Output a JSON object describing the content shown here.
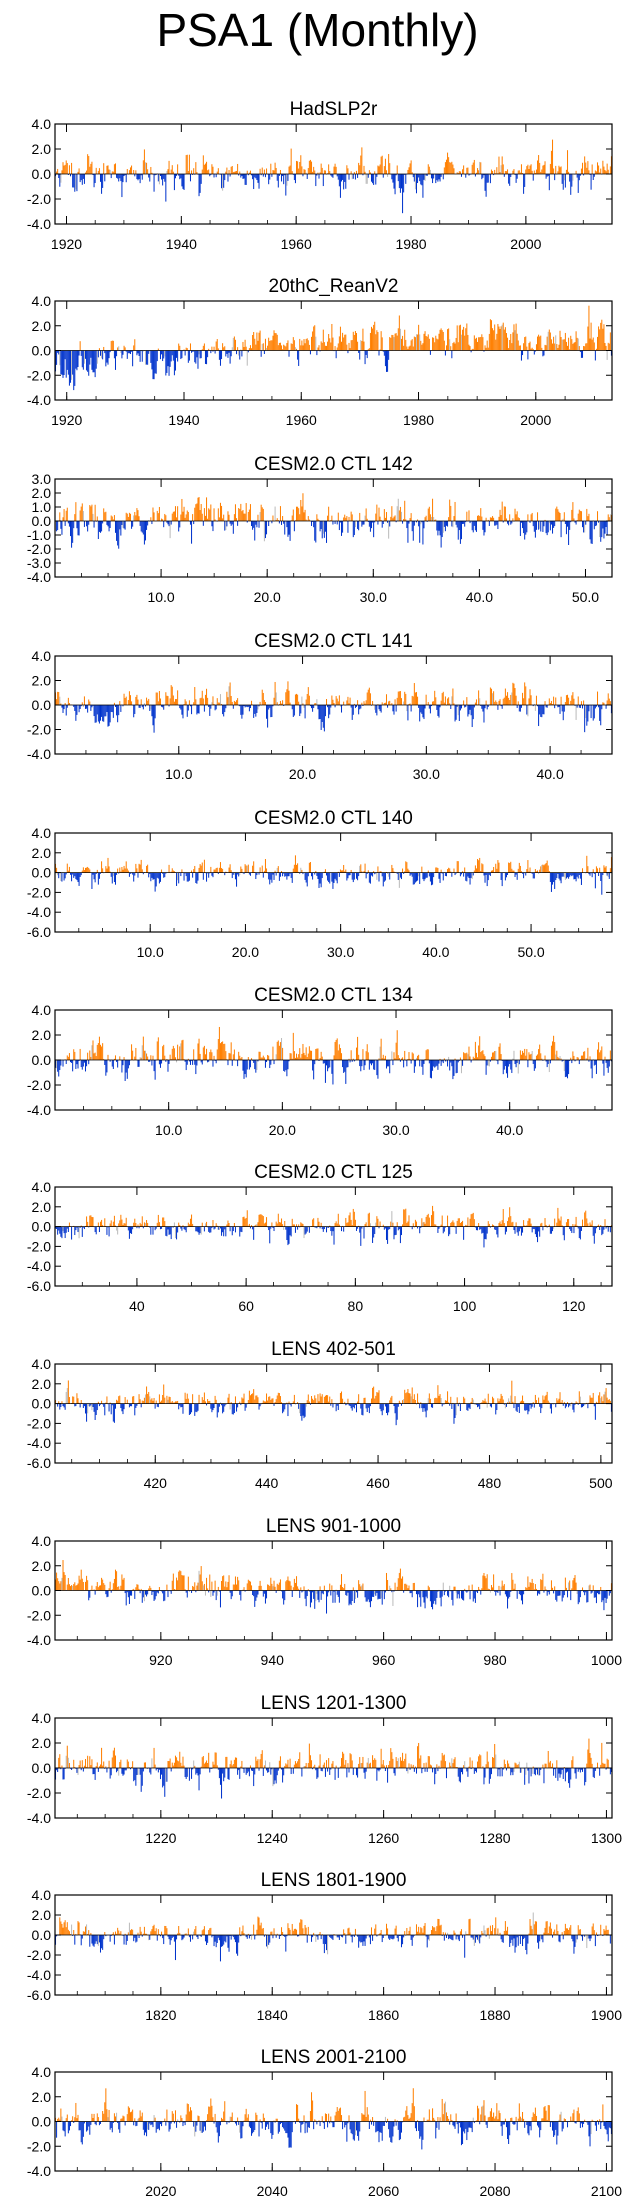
{
  "page_title": "PSA1 (Monthly)",
  "colors": {
    "positive": "#ff7f00",
    "negative": "#0033cc",
    "faint": "#bbbbbb",
    "frame": "#000000"
  },
  "chart_data": [
    {
      "type": "bar",
      "title": "HadSLP2r",
      "x_range": [
        1918,
        2015
      ],
      "ylim": [
        -4,
        4
      ],
      "yticks": [
        4,
        2,
        0,
        -2,
        -4
      ],
      "ytick_labels": [
        "4.0",
        "2.0",
        "0.0",
        "-2.0",
        "-4.0"
      ],
      "xticks": [
        1920,
        1940,
        1960,
        1980,
        2000
      ],
      "xtick_labels": [
        "1920",
        "1940",
        "1960",
        "1980",
        "2000"
      ],
      "seed": 11,
      "drift": []
    },
    {
      "type": "bar",
      "title": "20thC_ReanV2",
      "x_range": [
        1918,
        2013
      ],
      "ylim": [
        -4,
        4
      ],
      "yticks": [
        4,
        2,
        0,
        -2,
        -4
      ],
      "ytick_labels": [
        "4.0",
        "2.0",
        "0.0",
        "-2.0",
        "-4.0"
      ],
      "xticks": [
        1920,
        1940,
        1960,
        1980,
        2000
      ],
      "xtick_labels": [
        "1920",
        "1940",
        "1960",
        "1980",
        "2000"
      ],
      "seed": 23,
      "drift": [
        [
          1918,
          -1.0
        ],
        [
          1940,
          -1.0
        ],
        [
          1947,
          0.3
        ],
        [
          1960,
          0.5
        ],
        [
          1980,
          0.9
        ],
        [
          2013,
          0.6
        ]
      ]
    },
    {
      "type": "bar",
      "title": "CESM2.0 CTL 142",
      "x_range": [
        0,
        52.5
      ],
      "ylim": [
        -4,
        3
      ],
      "yticks": [
        3,
        2,
        1,
        0,
        -1,
        -2,
        -3,
        -4
      ],
      "ytick_labels": [
        "3.0",
        "2.0",
        "1.0",
        "0.0",
        "-1.0",
        "-2.0",
        "-3.0",
        "-4.0"
      ],
      "xticks": [
        10,
        20,
        30,
        40,
        50
      ],
      "xtick_labels": [
        "10.0",
        "20.0",
        "30.0",
        "40.0",
        "50.0"
      ],
      "seed": 37,
      "drift": []
    },
    {
      "type": "bar",
      "title": "CESM2.0 CTL 141",
      "x_range": [
        0,
        45
      ],
      "ylim": [
        -4,
        4
      ],
      "yticks": [
        4,
        2,
        0,
        -2,
        -4
      ],
      "ytick_labels": [
        "4.0",
        "2.0",
        "0.0",
        "-2.0",
        "-4.0"
      ],
      "xticks": [
        10,
        20,
        30,
        40
      ],
      "xtick_labels": [
        "10.0",
        "20.0",
        "30.0",
        "40.0"
      ],
      "seed": 41,
      "drift": []
    },
    {
      "type": "bar",
      "title": "CESM2.0 CTL 140",
      "x_range": [
        0,
        58.5
      ],
      "ylim": [
        -6,
        4
      ],
      "yticks": [
        4,
        2,
        0,
        -2,
        -4,
        -6
      ],
      "ytick_labels": [
        "4.0",
        "2.0",
        "0.0",
        "-2.0",
        "-4.0",
        "-6.0"
      ],
      "xticks": [
        10,
        20,
        30,
        40,
        50
      ],
      "xtick_labels": [
        "10.0",
        "20.0",
        "30.0",
        "40.0",
        "50.0"
      ],
      "seed": 53,
      "drift": []
    },
    {
      "type": "bar",
      "title": "CESM2.0 CTL 134",
      "x_range": [
        0,
        49
      ],
      "ylim": [
        -4,
        4
      ],
      "yticks": [
        4,
        2,
        0,
        -2,
        -4
      ],
      "ytick_labels": [
        "4.0",
        "2.0",
        "0.0",
        "-2.0",
        "-4.0"
      ],
      "xticks": [
        10,
        20,
        30,
        40
      ],
      "xtick_labels": [
        "10.0",
        "20.0",
        "30.0",
        "40.0"
      ],
      "seed": 67,
      "drift": []
    },
    {
      "type": "bar",
      "title": "CESM2.0 CTL 125",
      "x_range": [
        25,
        127
      ],
      "ylim": [
        -6,
        4
      ],
      "yticks": [
        4,
        2,
        0,
        -2,
        -4,
        -6
      ],
      "ytick_labels": [
        "4.0",
        "2.0",
        "0.0",
        "-2.0",
        "-4.0",
        "-6.0"
      ],
      "xticks": [
        40,
        60,
        80,
        100,
        120
      ],
      "xtick_labels": [
        "40",
        "60",
        "80",
        "100",
        "120"
      ],
      "seed": 71,
      "drift": []
    },
    {
      "type": "bar",
      "title": "LENS 402-501",
      "x_range": [
        402,
        502
      ],
      "ylim": [
        -6,
        4
      ],
      "yticks": [
        4,
        2,
        0,
        -2,
        -4,
        -6
      ],
      "ytick_labels": [
        "4.0",
        "2.0",
        "0.0",
        "-2.0",
        "-4.0",
        "-6.0"
      ],
      "xticks": [
        420,
        440,
        460,
        480,
        500
      ],
      "xtick_labels": [
        "420",
        "440",
        "460",
        "480",
        "500"
      ],
      "seed": 83,
      "drift": []
    },
    {
      "type": "bar",
      "title": "LENS 901-1000",
      "x_range": [
        901,
        1001
      ],
      "ylim": [
        -4,
        4
      ],
      "yticks": [
        4,
        2,
        0,
        -2,
        -4
      ],
      "ytick_labels": [
        "4.0",
        "2.0",
        "0.0",
        "-2.0",
        "-4.0"
      ],
      "xticks": [
        920,
        940,
        960,
        980,
        1000
      ],
      "xtick_labels": [
        "920",
        "940",
        "960",
        "980",
        "1000"
      ],
      "seed": 97,
      "drift": []
    },
    {
      "type": "bar",
      "title": "LENS 1201-1300",
      "x_range": [
        1201,
        1301
      ],
      "ylim": [
        -4,
        4
      ],
      "yticks": [
        4,
        2,
        0,
        -2,
        -4
      ],
      "ytick_labels": [
        "4.0",
        "2.0",
        "0.0",
        "-2.0",
        "-4.0"
      ],
      "xticks": [
        1220,
        1240,
        1260,
        1280,
        1300
      ],
      "xtick_labels": [
        "1220",
        "1240",
        "1260",
        "1280",
        "1300"
      ],
      "seed": 101,
      "drift": []
    },
    {
      "type": "bar",
      "title": "LENS 1801-1900",
      "x_range": [
        1801,
        1901
      ],
      "ylim": [
        -6,
        4
      ],
      "yticks": [
        4,
        2,
        0,
        -2,
        -4,
        -6
      ],
      "ytick_labels": [
        "4.0",
        "2.0",
        "0.0",
        "-2.0",
        "-4.0",
        "-6.0"
      ],
      "xticks": [
        1820,
        1840,
        1860,
        1880,
        1900
      ],
      "xtick_labels": [
        "1820",
        "1840",
        "1860",
        "1880",
        "1900"
      ],
      "seed": 113,
      "drift": []
    },
    {
      "type": "bar",
      "title": "LENS 2001-2100",
      "x_range": [
        2001,
        2101
      ],
      "ylim": [
        -4,
        4
      ],
      "yticks": [
        4,
        2,
        0,
        -2,
        -4
      ],
      "ytick_labels": [
        "4.0",
        "2.0",
        "0.0",
        "-2.0",
        "-4.0"
      ],
      "xticks": [
        2020,
        2040,
        2060,
        2080,
        2100
      ],
      "xtick_labels": [
        "2020",
        "2040",
        "2060",
        "2080",
        "2100"
      ],
      "seed": 127,
      "drift": []
    }
  ]
}
